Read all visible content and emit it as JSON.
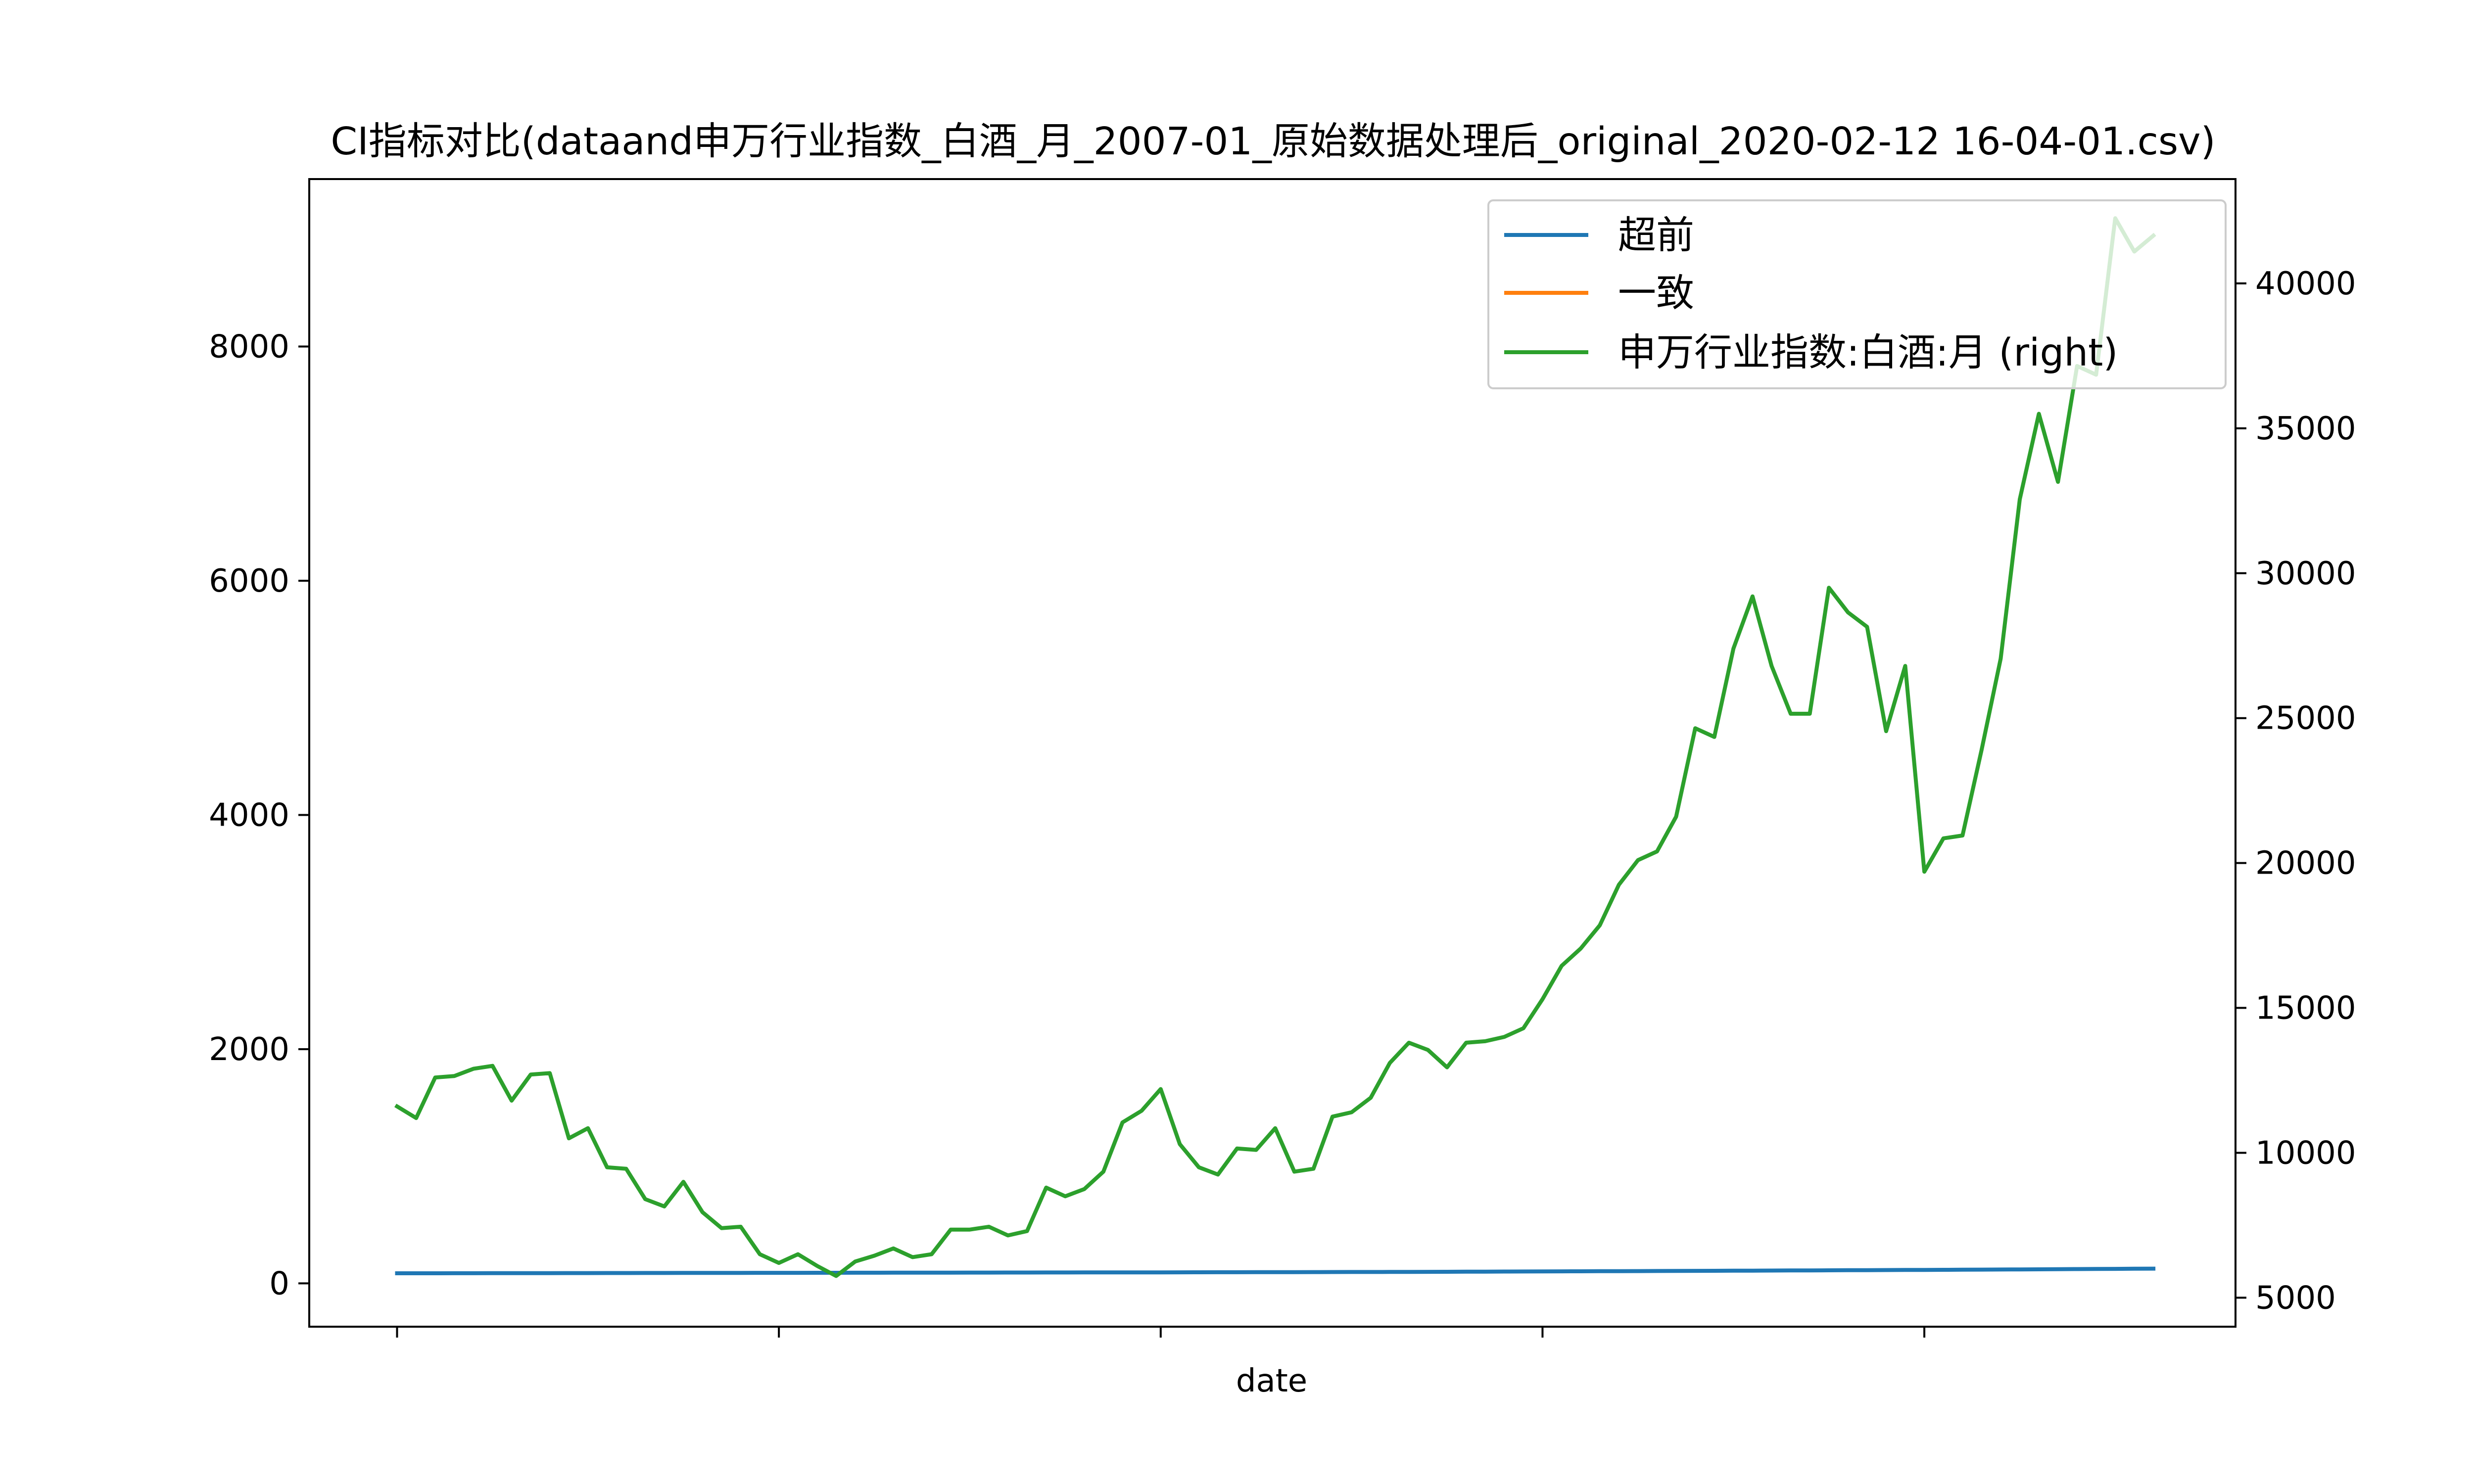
{
  "chart_data": {
    "type": "line",
    "title": "CI指标对比(dataand申万行业指数_白酒_月_2007-01_原始数据处理后_original_2020-02-12 16-04-01.csv)",
    "xlabel": "date",
    "ylabel": "",
    "ylim": [
      -370,
      9430
    ],
    "y2lim": [
      4000,
      43600
    ],
    "yticks": [
      0,
      2000,
      4000,
      6000,
      8000
    ],
    "y2ticks": [
      5000,
      10000,
      15000,
      20000,
      25000,
      30000,
      35000,
      40000
    ],
    "x_start": 0,
    "x_end": 92,
    "xlim": [
      -4.6,
      96.3
    ],
    "xticks": [
      0,
      20,
      40,
      60,
      80
    ],
    "xtick_labels": [
      "",
      "",
      "",
      "",
      ""
    ],
    "grid": false,
    "legend_position": "upper right",
    "series": [
      {
        "name": "超前",
        "axis": "left",
        "color": "#1f77b4",
        "values": [
          86,
          86.2,
          86.4,
          86.6,
          86.8,
          87,
          87.2,
          87.4,
          87.6,
          87.8,
          88,
          88.2,
          88.4,
          88.6,
          88.8,
          89,
          89.2,
          89.4,
          89.6,
          89.8,
          90,
          90.2,
          90.4,
          90.6,
          90.8,
          91,
          91.2,
          91.4,
          91.6,
          91.8,
          92,
          92.2,
          92.4,
          92.6,
          92.8,
          93,
          93.2,
          93.4,
          93.6,
          93.8,
          94,
          94.3,
          94.6,
          94.9,
          95.2,
          95.5,
          95.8,
          96.1,
          96.4,
          96.7,
          97,
          97.4,
          97.8,
          98.2,
          98.6,
          99,
          99.6,
          100.2,
          100.8,
          101.4,
          102,
          102.6,
          103.2,
          103.8,
          104.4,
          105,
          105.6,
          106.2,
          106.8,
          107.4,
          108,
          108.7,
          109.4,
          110.1,
          110.8,
          111.5,
          112.2,
          112.9,
          113.6,
          114.3,
          115,
          115.8,
          116.6,
          117.4,
          118.2,
          119,
          120,
          121,
          122,
          123,
          124,
          125,
          126
        ]
      },
      {
        "name": "一致",
        "axis": "left",
        "color": "#ff7f0e",
        "values": []
      },
      {
        "name": "申万行业指数:白酒:月 (right)",
        "axis": "right",
        "color": "#2ca02c",
        "values": [
          11600,
          11200,
          12600,
          12650,
          12900,
          13000,
          11800,
          12700,
          12750,
          10500,
          10850,
          9500,
          9450,
          8400,
          8150,
          9000,
          7950,
          7400,
          7450,
          6500,
          6200,
          6500,
          6100,
          5750,
          6250,
          6450,
          6700,
          6400,
          6500,
          7350,
          7350,
          7450,
          7150,
          7300,
          8800,
          8500,
          8750,
          9350,
          11050,
          11450,
          12200,
          10300,
          9500,
          9250,
          10150,
          10100,
          10850,
          9350,
          9450,
          11250,
          11400,
          11900,
          13100,
          13800,
          13550,
          12950,
          13800,
          13850,
          14000,
          14300,
          15300,
          16450,
          17050,
          17850,
          19250,
          20100,
          20400,
          21600,
          24650,
          24350,
          27400,
          29200,
          26800,
          25150,
          25150,
          29500,
          28650,
          28150,
          24550,
          26800,
          19700,
          20850,
          20950,
          23900,
          27050,
          32550,
          35500,
          33150,
          37150,
          36850,
          42250,
          41100,
          41650
        ]
      }
    ]
  }
}
